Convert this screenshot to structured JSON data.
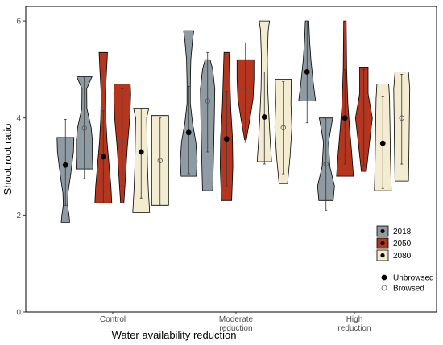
{
  "chart_data": {
    "type": "violin",
    "xlabel": "Water availability reduction",
    "ylabel": "Shoot:root ratio",
    "ylim": [
      0,
      6.3
    ],
    "yticks": [
      0,
      2,
      4,
      6
    ],
    "categories": [
      {
        "lines": [
          "Control"
        ]
      },
      {
        "lines": [
          "Moderate",
          "reduction"
        ]
      },
      {
        "lines": [
          "High",
          "reduction"
        ]
      }
    ],
    "legend": {
      "years": [
        {
          "label": "2018",
          "color": "#8e9ba3"
        },
        {
          "label": "2050",
          "color": "#b5361f"
        },
        {
          "label": "2080",
          "color": "#f3ecd0"
        }
      ],
      "status": [
        {
          "label": "Unbrowsed",
          "filled": true
        },
        {
          "label": "Browsed",
          "filled": false
        }
      ],
      "position": "bottom-right"
    },
    "series": [
      {
        "category": 0,
        "year": "2018",
        "browsed": false,
        "mean": 3.03,
        "whisker": [
          2.2,
          3.97
        ],
        "profile": [
          [
            1.85,
            0.5
          ],
          [
            2.0,
            0.42
          ],
          [
            2.2,
            0.25
          ],
          [
            2.45,
            0.3
          ],
          [
            2.8,
            0.6
          ],
          [
            3.3,
            0.95
          ],
          [
            3.6,
            1.0
          ]
        ]
      },
      {
        "category": 0,
        "year": "2018",
        "browsed": true,
        "mean": 3.79,
        "whisker": [
          2.75,
          4.85
        ],
        "profile": [
          [
            2.95,
            1.0
          ],
          [
            3.2,
            0.95
          ],
          [
            3.55,
            0.95
          ],
          [
            3.8,
            0.8
          ],
          [
            4.2,
            0.3
          ],
          [
            4.6,
            0.28
          ],
          [
            4.85,
            0.9
          ]
        ]
      },
      {
        "category": 0,
        "year": "2050",
        "browsed": false,
        "mean": 3.2,
        "whisker": [
          2.25,
          4.15
        ],
        "profile": [
          [
            2.25,
            1.0
          ],
          [
            2.6,
            0.9
          ],
          [
            3.0,
            0.7
          ],
          [
            3.5,
            0.45
          ],
          [
            4.0,
            0.3
          ],
          [
            4.5,
            0.25
          ],
          [
            5.0,
            0.4
          ],
          [
            5.35,
            0.5
          ]
        ]
      },
      {
        "category": 0,
        "year": "2050",
        "browsed": true,
        "mean": 3.5,
        "whisker": [
          2.5,
          4.6
        ],
        "profile": [
          [
            2.25,
            0.2
          ],
          [
            2.8,
            0.4
          ],
          [
            3.4,
            0.6
          ],
          [
            4.0,
            0.9
          ],
          [
            4.5,
            1.0
          ],
          [
            4.7,
            0.95
          ]
        ]
      },
      {
        "category": 0,
        "year": "2080",
        "browsed": false,
        "mean": 3.3,
        "whisker": [
          2.35,
          4.2
        ],
        "profile": [
          [
            2.05,
            1.0
          ],
          [
            2.5,
            0.85
          ],
          [
            3.0,
            0.75
          ],
          [
            3.5,
            0.7
          ],
          [
            4.0,
            0.65
          ],
          [
            4.2,
            0.9
          ]
        ]
      },
      {
        "category": 0,
        "year": "2080",
        "browsed": true,
        "mean": 3.12,
        "whisker": [
          2.2,
          4.0
        ],
        "profile": [
          [
            2.2,
            1.0
          ],
          [
            3.0,
            1.0
          ],
          [
            4.0,
            1.0
          ],
          [
            4.05,
            1.0
          ]
        ]
      },
      {
        "category": 1,
        "year": "2018",
        "browsed": false,
        "mean": 3.7,
        "whisker": [
          2.85,
          4.65
        ],
        "profile": [
          [
            2.8,
            0.9
          ],
          [
            3.1,
            1.0
          ],
          [
            3.5,
            0.85
          ],
          [
            3.9,
            0.45
          ],
          [
            4.3,
            0.2
          ],
          [
            4.7,
            0.2
          ],
          [
            5.2,
            0.25
          ],
          [
            5.6,
            0.45
          ],
          [
            5.8,
            0.6
          ]
        ]
      },
      {
        "category": 1,
        "year": "2018",
        "browsed": true,
        "mean": 4.35,
        "whisker": [
          3.3,
          5.35
        ],
        "profile": [
          [
            2.5,
            0.6
          ],
          [
            3.2,
            0.7
          ],
          [
            4.0,
            0.8
          ],
          [
            4.6,
            0.85
          ],
          [
            5.0,
            0.6
          ],
          [
            5.2,
            0.3
          ]
        ]
      },
      {
        "category": 1,
        "year": "2050",
        "browsed": false,
        "mean": 3.57,
        "whisker": [
          2.6,
          4.55
        ],
        "profile": [
          [
            2.3,
            0.6
          ],
          [
            3.0,
            0.75
          ],
          [
            3.6,
            0.7
          ],
          [
            4.2,
            0.5
          ],
          [
            4.8,
            0.4
          ],
          [
            5.35,
            0.3
          ]
        ]
      },
      {
        "category": 1,
        "year": "2050",
        "browsed": true,
        "mean": 4.6,
        "whisker": [
          3.5,
          5.55
        ],
        "profile": [
          [
            3.55,
            0.1
          ],
          [
            4.0,
            0.55
          ],
          [
            4.4,
            0.9
          ],
          [
            4.8,
            1.0
          ],
          [
            5.2,
            1.0
          ]
        ]
      },
      {
        "category": 1,
        "year": "2080",
        "browsed": false,
        "mean": 4.02,
        "whisker": [
          3.05,
          4.95
        ],
        "profile": [
          [
            3.1,
            0.85
          ],
          [
            3.5,
            0.7
          ],
          [
            4.0,
            0.55
          ],
          [
            4.6,
            0.4
          ],
          [
            5.2,
            0.35
          ],
          [
            5.8,
            0.45
          ],
          [
            6.0,
            0.6
          ]
        ]
      },
      {
        "category": 1,
        "year": "2080",
        "browsed": true,
        "mean": 3.8,
        "whisker": [
          2.85,
          4.75
        ],
        "profile": [
          [
            2.65,
            0.5
          ],
          [
            3.2,
            0.8
          ],
          [
            3.8,
            1.0
          ],
          [
            4.3,
            0.9
          ],
          [
            4.8,
            0.95
          ]
        ]
      },
      {
        "category": 2,
        "year": "2018",
        "browsed": false,
        "mean": 4.95,
        "whisker": [
          3.9,
          6.0
        ],
        "profile": [
          [
            4.35,
            1.0
          ],
          [
            4.7,
            0.75
          ],
          [
            5.2,
            0.45
          ],
          [
            5.6,
            0.3
          ],
          [
            6.0,
            0.2
          ]
        ]
      },
      {
        "category": 2,
        "year": "2018",
        "browsed": true,
        "mean": 3.05,
        "whisker": [
          2.1,
          4.0
        ],
        "profile": [
          [
            2.3,
            0.85
          ],
          [
            2.6,
            1.0
          ],
          [
            3.0,
            0.45
          ],
          [
            3.5,
            0.3
          ],
          [
            4.0,
            0.8
          ]
        ]
      },
      {
        "category": 2,
        "year": "2050",
        "browsed": false,
        "mean": 4.0,
        "whisker": [
          3.05,
          5.0
        ],
        "profile": [
          [
            2.8,
            1.0
          ],
          [
            3.3,
            0.8
          ],
          [
            3.8,
            0.55
          ],
          [
            4.3,
            0.35
          ],
          [
            5.0,
            0.2
          ],
          [
            6.0,
            0.15
          ]
        ]
      },
      {
        "category": 2,
        "year": "2050",
        "browsed": true,
        "mean": 3.98,
        "whisker": [
          3.0,
          5.0
        ],
        "profile": [
          [
            2.9,
            0.3
          ],
          [
            3.4,
            0.6
          ],
          [
            4.0,
            1.0
          ],
          [
            4.5,
            0.5
          ],
          [
            5.05,
            0.5
          ]
        ]
      },
      {
        "category": 2,
        "year": "2080",
        "browsed": false,
        "mean": 3.48,
        "whisker": [
          2.55,
          4.45
        ],
        "profile": [
          [
            2.5,
            1.0
          ],
          [
            3.2,
            0.9
          ],
          [
            3.8,
            0.85
          ],
          [
            4.4,
            0.8
          ],
          [
            4.7,
            0.7
          ]
        ]
      },
      {
        "category": 2,
        "year": "2080",
        "browsed": true,
        "mean": 4.0,
        "whisker": [
          3.05,
          4.9
        ],
        "profile": [
          [
            2.7,
            0.8
          ],
          [
            3.3,
            0.85
          ],
          [
            4.0,
            0.9
          ],
          [
            4.6,
            0.95
          ],
          [
            4.95,
            0.8
          ]
        ]
      }
    ]
  }
}
